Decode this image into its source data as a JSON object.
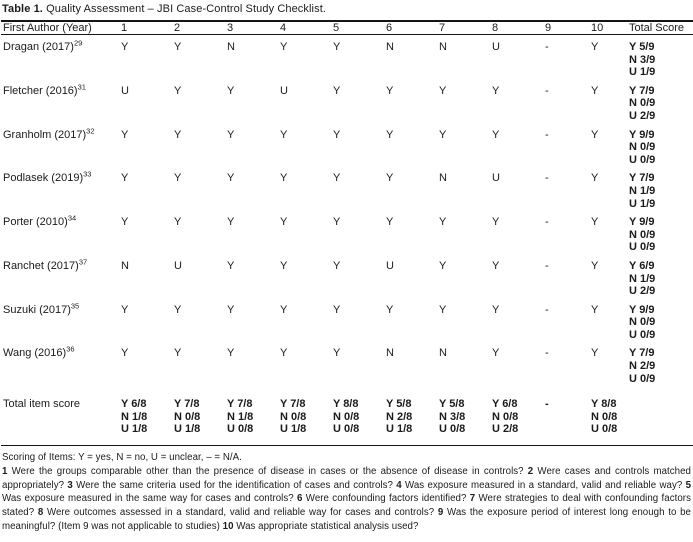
{
  "colors": {
    "background": "#ffffff",
    "text": "#1b1b1b",
    "rule": "#151515"
  },
  "title": {
    "label": "Table 1.",
    "text": "Quality Assessment – JBI Case-Control Study Checklist."
  },
  "table": {
    "header": {
      "first_col": "First Author (Year)",
      "item_cols": [
        "1",
        "2",
        "3",
        "4",
        "5",
        "6",
        "7",
        "8",
        "9",
        "10"
      ],
      "total_col": "Total Score"
    },
    "rows": [
      {
        "author": "Dragan (2017)",
        "ref": "29",
        "items": [
          "Y",
          "Y",
          "N",
          "Y",
          "Y",
          "N",
          "N",
          "U",
          "-",
          "Y"
        ],
        "total": [
          "Y 5/9",
          "N 3/9",
          "U 1/9"
        ]
      },
      {
        "author": "Fletcher (2016)",
        "ref": "31",
        "items": [
          "U",
          "Y",
          "Y",
          "U",
          "Y",
          "Y",
          "Y",
          "Y",
          "-",
          "Y"
        ],
        "total": [
          "Y 7/9",
          "N 0/9",
          "U 2/9"
        ]
      },
      {
        "author": "Granholm (2017)",
        "ref": "32",
        "items": [
          "Y",
          "Y",
          "Y",
          "Y",
          "Y",
          "Y",
          "Y",
          "Y",
          "-",
          "Y"
        ],
        "total": [
          "Y 9/9",
          "N 0/9",
          "U 0/9"
        ]
      },
      {
        "author": "Podlasek (2019)",
        "ref": "33",
        "items": [
          "Y",
          "Y",
          "Y",
          "Y",
          "Y",
          "Y",
          "N",
          "U",
          "-",
          "Y"
        ],
        "total": [
          "Y 7/9",
          "N 1/9",
          "U 1/9"
        ]
      },
      {
        "author": "Porter (2010)",
        "ref": "34",
        "items": [
          "Y",
          "Y",
          "Y",
          "Y",
          "Y",
          "Y",
          "Y",
          "Y",
          "-",
          "Y"
        ],
        "total": [
          "Y 9/9",
          "N 0/9",
          "U 0/9"
        ]
      },
      {
        "author": "Ranchet (2017)",
        "ref": "37",
        "items": [
          "N",
          "U",
          "Y",
          "Y",
          "Y",
          "U",
          "Y",
          "Y",
          "-",
          "Y"
        ],
        "total": [
          "Y 6/9",
          "N 1/9",
          "U 2/9"
        ]
      },
      {
        "author": "Suzuki (2017)",
        "ref": "35",
        "items": [
          "Y",
          "Y",
          "Y",
          "Y",
          "Y",
          "Y",
          "Y",
          "Y",
          "-",
          "Y"
        ],
        "total": [
          "Y 9/9",
          "N 0/9",
          "U 0/9"
        ]
      },
      {
        "author": "Wang (2016)",
        "ref": "36",
        "items": [
          "Y",
          "Y",
          "Y",
          "Y",
          "Y",
          "N",
          "N",
          "Y",
          "-",
          "Y"
        ],
        "total": [
          "Y 7/9",
          "N 2/9",
          "U 0/9"
        ]
      }
    ],
    "summary": {
      "label": "Total item score",
      "items": [
        [
          "Y 6/8",
          "N 1/8",
          "U 1/8"
        ],
        [
          "Y 7/8",
          "N 0/8",
          "U 1/8"
        ],
        [
          "Y 7/8",
          "N 1/8",
          "U 0/8"
        ],
        [
          "Y 7/8",
          "N 0/8",
          "U 1/8"
        ],
        [
          "Y 8/8",
          "N 0/8",
          "U 0/8"
        ],
        [
          "Y 5/8",
          "N 2/8",
          "U 1/8"
        ],
        [
          "Y 5/8",
          "N 3/8",
          "U 0/8"
        ],
        [
          "Y 6/8",
          "N 0/8",
          "U 2/8"
        ],
        [
          "-"
        ],
        [
          "Y 8/8",
          "N 0/8",
          "U 0/8"
        ]
      ],
      "total": ""
    }
  },
  "footnotes": {
    "scoring": "Scoring of Items: Y = yes, N = no, U = unclear, – = N/A.",
    "items": [
      {
        "num": "1",
        "text": "Were the groups comparable other than the presence of disease in cases or the absence of disease in controls?"
      },
      {
        "num": "2",
        "text": "Were cases and controls matched appropriately?"
      },
      {
        "num": "3",
        "text": "Were the same criteria used for the identification of cases and controls?"
      },
      {
        "num": "4",
        "text": "Was exposure measured in a standard, valid and reliable way?"
      },
      {
        "num": "5",
        "text": "Was exposure measured in the same way for cases and controls?"
      },
      {
        "num": "6",
        "text": "Were confounding factors identified?"
      },
      {
        "num": "7",
        "text": "Were strategies to deal with confounding factors stated?"
      },
      {
        "num": "8",
        "text": "Were outcomes assessed in a standard, valid and reliable way for cases and controls?"
      },
      {
        "num": "9",
        "text": "Was the exposure period of interest long enough to be meaningful? (Item 9 was not applicable to studies)"
      },
      {
        "num": "10",
        "text": "Was appropriate statistical analysis used?"
      }
    ]
  }
}
